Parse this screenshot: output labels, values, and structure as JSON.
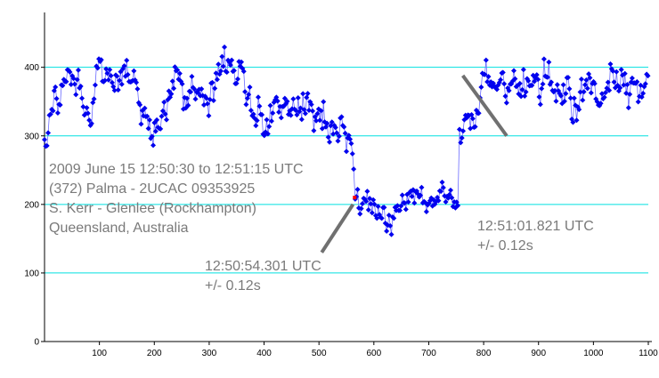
{
  "chart_data": {
    "type": "scatter",
    "xlim": [
      0,
      1100
    ],
    "ylim": [
      0,
      480
    ],
    "x_ticks": [
      "100",
      "200",
      "300",
      "400",
      "500",
      "600",
      "700",
      "800",
      "900",
      "1000",
      "1100"
    ],
    "y_ticks": [
      "0",
      "100",
      "200",
      "300",
      "400"
    ],
    "grid": "horizontal",
    "colors": {
      "points": "#0000ee",
      "line": "#6a6aff",
      "grid": "#00e0e0",
      "highlight": "#ff0000",
      "pointer": "#707070",
      "text": "#7a7a7a"
    },
    "info_lines": [
      "2009 June 15 12:50:30 to 12:51:15 UTC",
      "(372) Palma - 2UCAC 09353925",
      "S. Kerr - Glenlee (Rockhampton)",
      "Queensland, Australia"
    ],
    "annotations": [
      {
        "lines": [
          "12:50:54.301 UTC",
          "+/- 0.12s"
        ],
        "pointer_from": [
          505,
          130
        ],
        "pointer_to": [
          562,
          200
        ]
      },
      {
        "lines": [
          "12:51:01.821 UTC",
          "+/- 0.12s"
        ],
        "pointer_from": [
          842,
          300
        ],
        "pointer_to": [
          762,
          388
        ]
      }
    ],
    "highlight_point": {
      "x": 565,
      "y": 210
    },
    "segments": [
      {
        "x0": 0,
        "x1": 565,
        "levels": [
          [
            0,
            300
          ],
          [
            10,
            340
          ],
          [
            40,
            375
          ],
          [
            80,
            355
          ],
          [
            120,
            385
          ],
          [
            160,
            360
          ],
          [
            190,
            310
          ],
          [
            210,
            335
          ],
          [
            240,
            380
          ],
          [
            280,
            350
          ],
          [
            330,
            405
          ],
          [
            360,
            395
          ],
          [
            380,
            340
          ],
          [
            410,
            320
          ],
          [
            440,
            335
          ],
          [
            470,
            360
          ],
          [
            500,
            330
          ],
          [
            520,
            310
          ],
          [
            540,
            290
          ],
          [
            565,
            260
          ]
        ],
        "noise": 38
      },
      {
        "x0": 566,
        "x1": 755,
        "levels": [
          [
            566,
            215
          ],
          [
            580,
            190
          ],
          [
            600,
            200
          ],
          [
            625,
            170
          ],
          [
            650,
            200
          ],
          [
            670,
            225
          ],
          [
            700,
            215
          ],
          [
            730,
            205
          ],
          [
            755,
            210
          ]
        ],
        "noise": 28
      },
      {
        "x0": 756,
        "x1": 1100,
        "levels": [
          [
            756,
            290
          ],
          [
            770,
            340
          ],
          [
            800,
            385
          ],
          [
            840,
            375
          ],
          [
            880,
            365
          ],
          [
            920,
            385
          ],
          [
            960,
            345
          ],
          [
            1000,
            380
          ],
          [
            1040,
            395
          ],
          [
            1070,
            355
          ],
          [
            1100,
            395
          ]
        ],
        "noise": 38
      }
    ],
    "step": 2.2
  }
}
